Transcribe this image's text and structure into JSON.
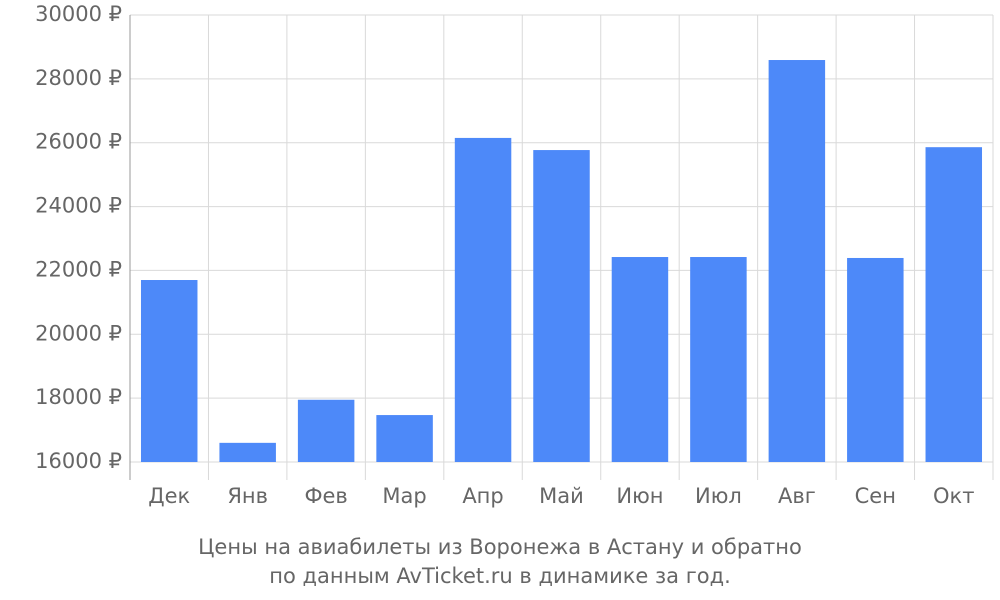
{
  "chart_data": {
    "type": "bar",
    "title": "Цены на авиабилеты из Воронежа в Астану и обратно",
    "subtitle": "по данным AvTicket.ru в динамике за год.",
    "categories": [
      "Дек",
      "Янв",
      "Фев",
      "Мар",
      "Апр",
      "Май",
      "Июн",
      "Июл",
      "Авг",
      "Сен",
      "Окт"
    ],
    "values": [
      21700,
      16600,
      17950,
      17470,
      26150,
      25770,
      22420,
      22420,
      28590,
      22390,
      25860
    ],
    "color": "#4d89f9",
    "ylim": [
      16000,
      30000
    ],
    "yticks": [
      {
        "value": 16000,
        "label": "16000 ₽"
      },
      {
        "value": 18000,
        "label": "18000 ₽"
      },
      {
        "value": 20000,
        "label": "20000 ₽"
      },
      {
        "value": 22000,
        "label": "22000 ₽"
      },
      {
        "value": 24000,
        "label": "24000 ₽"
      },
      {
        "value": 26000,
        "label": "26000 ₽"
      },
      {
        "value": 28000,
        "label": "28000 ₽"
      },
      {
        "value": 30000,
        "label": "30000 ₽"
      }
    ],
    "grid": true
  }
}
